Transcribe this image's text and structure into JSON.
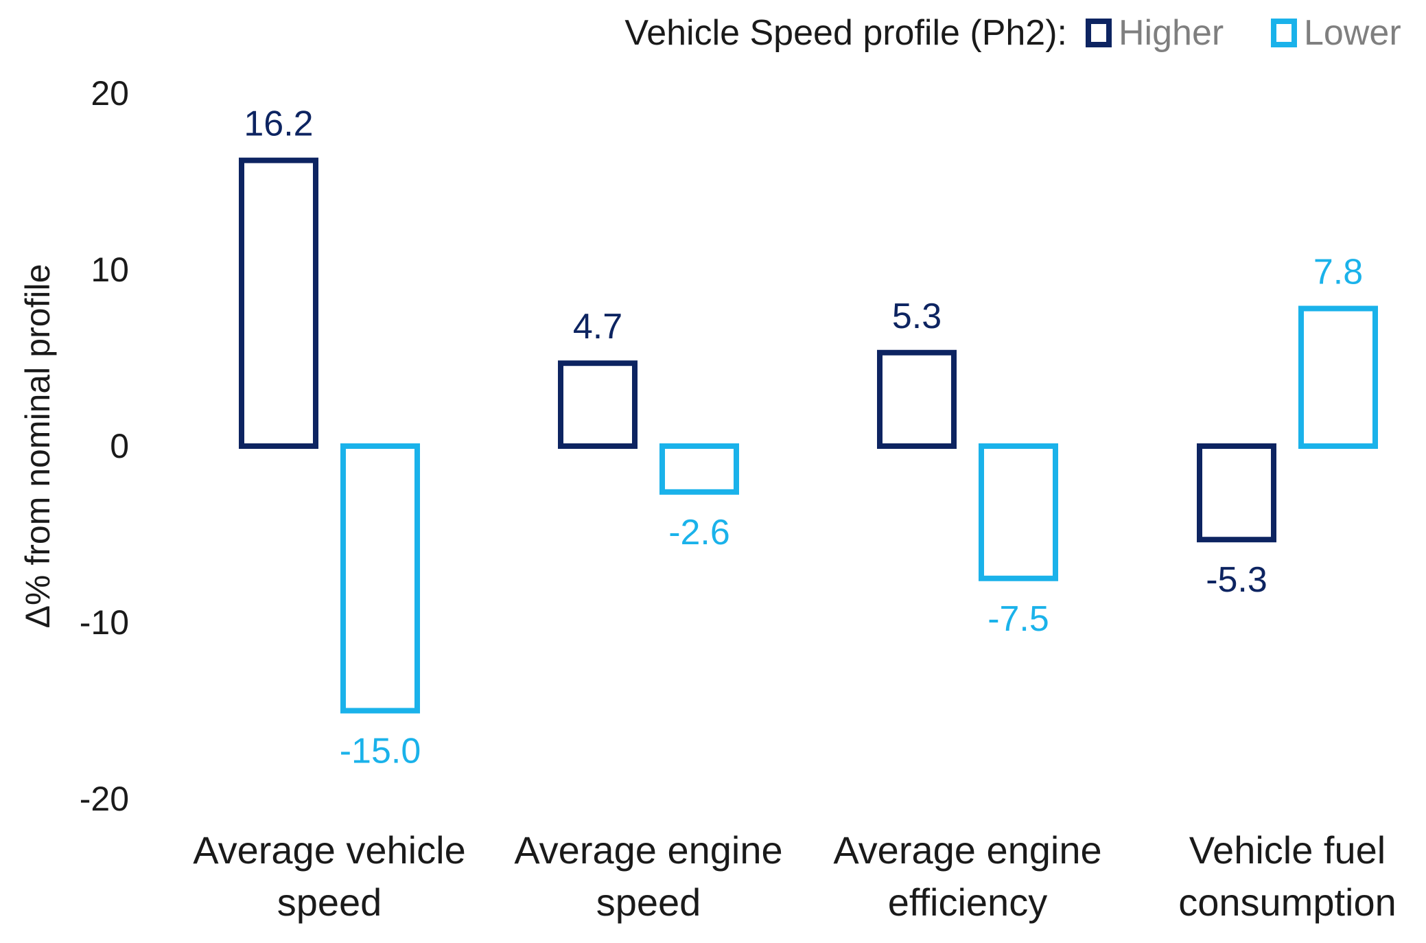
{
  "chart_data": {
    "type": "bar",
    "title": "",
    "xlabel": "",
    "ylabel": "Δ% from nominal profile",
    "ylim": [
      -20,
      20
    ],
    "yticks": [
      20,
      10,
      0,
      -10,
      -20
    ],
    "grid": false,
    "legend": {
      "title": "Vehicle Speed profile (Ph2):",
      "placement": "top-right",
      "entries": [
        "Higher",
        "Lower"
      ]
    },
    "categories": [
      [
        "Average vehicle",
        "speed"
      ],
      [
        "Average engine",
        "speed"
      ],
      [
        "Average engine",
        "efficiency"
      ],
      [
        "Vehicle fuel",
        "consumption"
      ]
    ],
    "series": [
      {
        "name": "Higher",
        "color": "#0d2461",
        "values": [
          16.2,
          4.7,
          5.3,
          -5.3
        ],
        "labels": [
          "16.2",
          "4.7",
          "5.3",
          "-5.3"
        ]
      },
      {
        "name": "Lower",
        "color": "#1ab2ea",
        "values": [
          -15.0,
          -2.6,
          -7.5,
          7.8
        ],
        "labels": [
          "-15.0",
          "-2.6",
          "-7.5",
          "7.8"
        ]
      }
    ]
  }
}
